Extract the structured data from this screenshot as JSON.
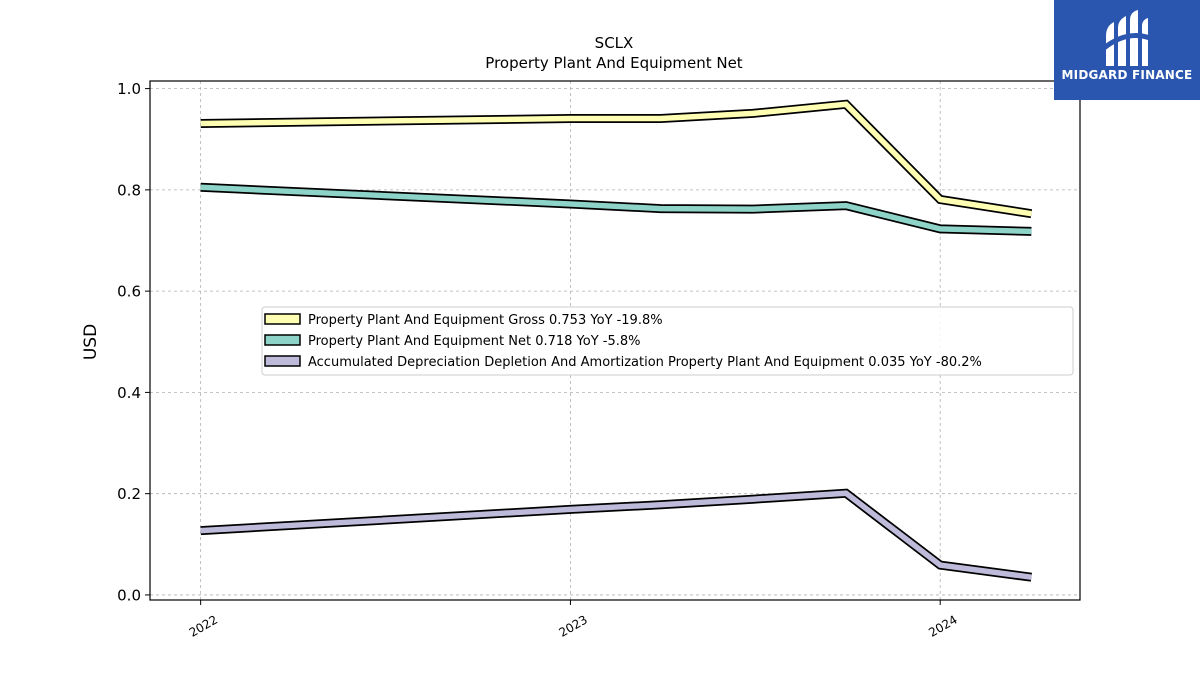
{
  "brand": {
    "name": "MIDGARD FINANCE",
    "background": "#2a56b0",
    "icon": "midgard-logo-icon"
  },
  "chart_data": {
    "type": "line",
    "title": "SCLX",
    "subtitle": "Property Plant And Equipment Net",
    "xlabel": "",
    "ylabel": "USD",
    "ylim": [
      -0.01,
      1.015
    ],
    "yticks": [
      0.0,
      0.2,
      0.4,
      0.6,
      0.8,
      1.0
    ],
    "ytick_labels": [
      "0.0",
      "0.2",
      "0.4",
      "0.6",
      "0.8",
      "1.0"
    ],
    "xlim": [
      "2021-11-12",
      "2024-05-18"
    ],
    "xticks": [
      "2022-01-01",
      "2023-01-01",
      "2024-01-01"
    ],
    "xtick_labels": [
      "2022",
      "2023",
      "2024"
    ],
    "grid": true,
    "legend_position": "center",
    "series": [
      {
        "name": "Property Plant And Equipment Gross",
        "legend_label": "Property Plant And Equipment Gross  0.753 YoY -19.8%",
        "color": "#ffffb3",
        "x": [
          "2022-01-01",
          "2023-01-01",
          "2023-03-31",
          "2023-06-30",
          "2023-09-30",
          "2024-01-01",
          "2024-03-31"
        ],
        "values": [
          0.931,
          0.941,
          0.941,
          0.951,
          0.969,
          0.781,
          0.753
        ]
      },
      {
        "name": "Property Plant And Equipment Net",
        "legend_label": "Property Plant And Equipment Net  0.718 YoY -5.8%",
        "color": "#8dd3c7",
        "x": [
          "2022-01-01",
          "2023-01-01",
          "2023-03-31",
          "2023-06-30",
          "2023-09-30",
          "2024-01-01",
          "2024-03-31"
        ],
        "values": [
          0.805,
          0.772,
          0.763,
          0.762,
          0.769,
          0.723,
          0.718
        ]
      },
      {
        "name": "Accumulated Depreciation Depletion And Amortization Property Plant And Equipment",
        "legend_label": "Accumulated Depreciation Depletion And Amortization Property Plant And Equipment  0.035 YoY -80.2%",
        "color": "#bebada",
        "x": [
          "2022-01-01",
          "2023-01-01",
          "2023-03-31",
          "2023-06-30",
          "2023-09-30",
          "2024-01-01",
          "2024-03-31"
        ],
        "values": [
          0.127,
          0.169,
          0.178,
          0.189,
          0.201,
          0.059,
          0.035
        ]
      }
    ]
  }
}
